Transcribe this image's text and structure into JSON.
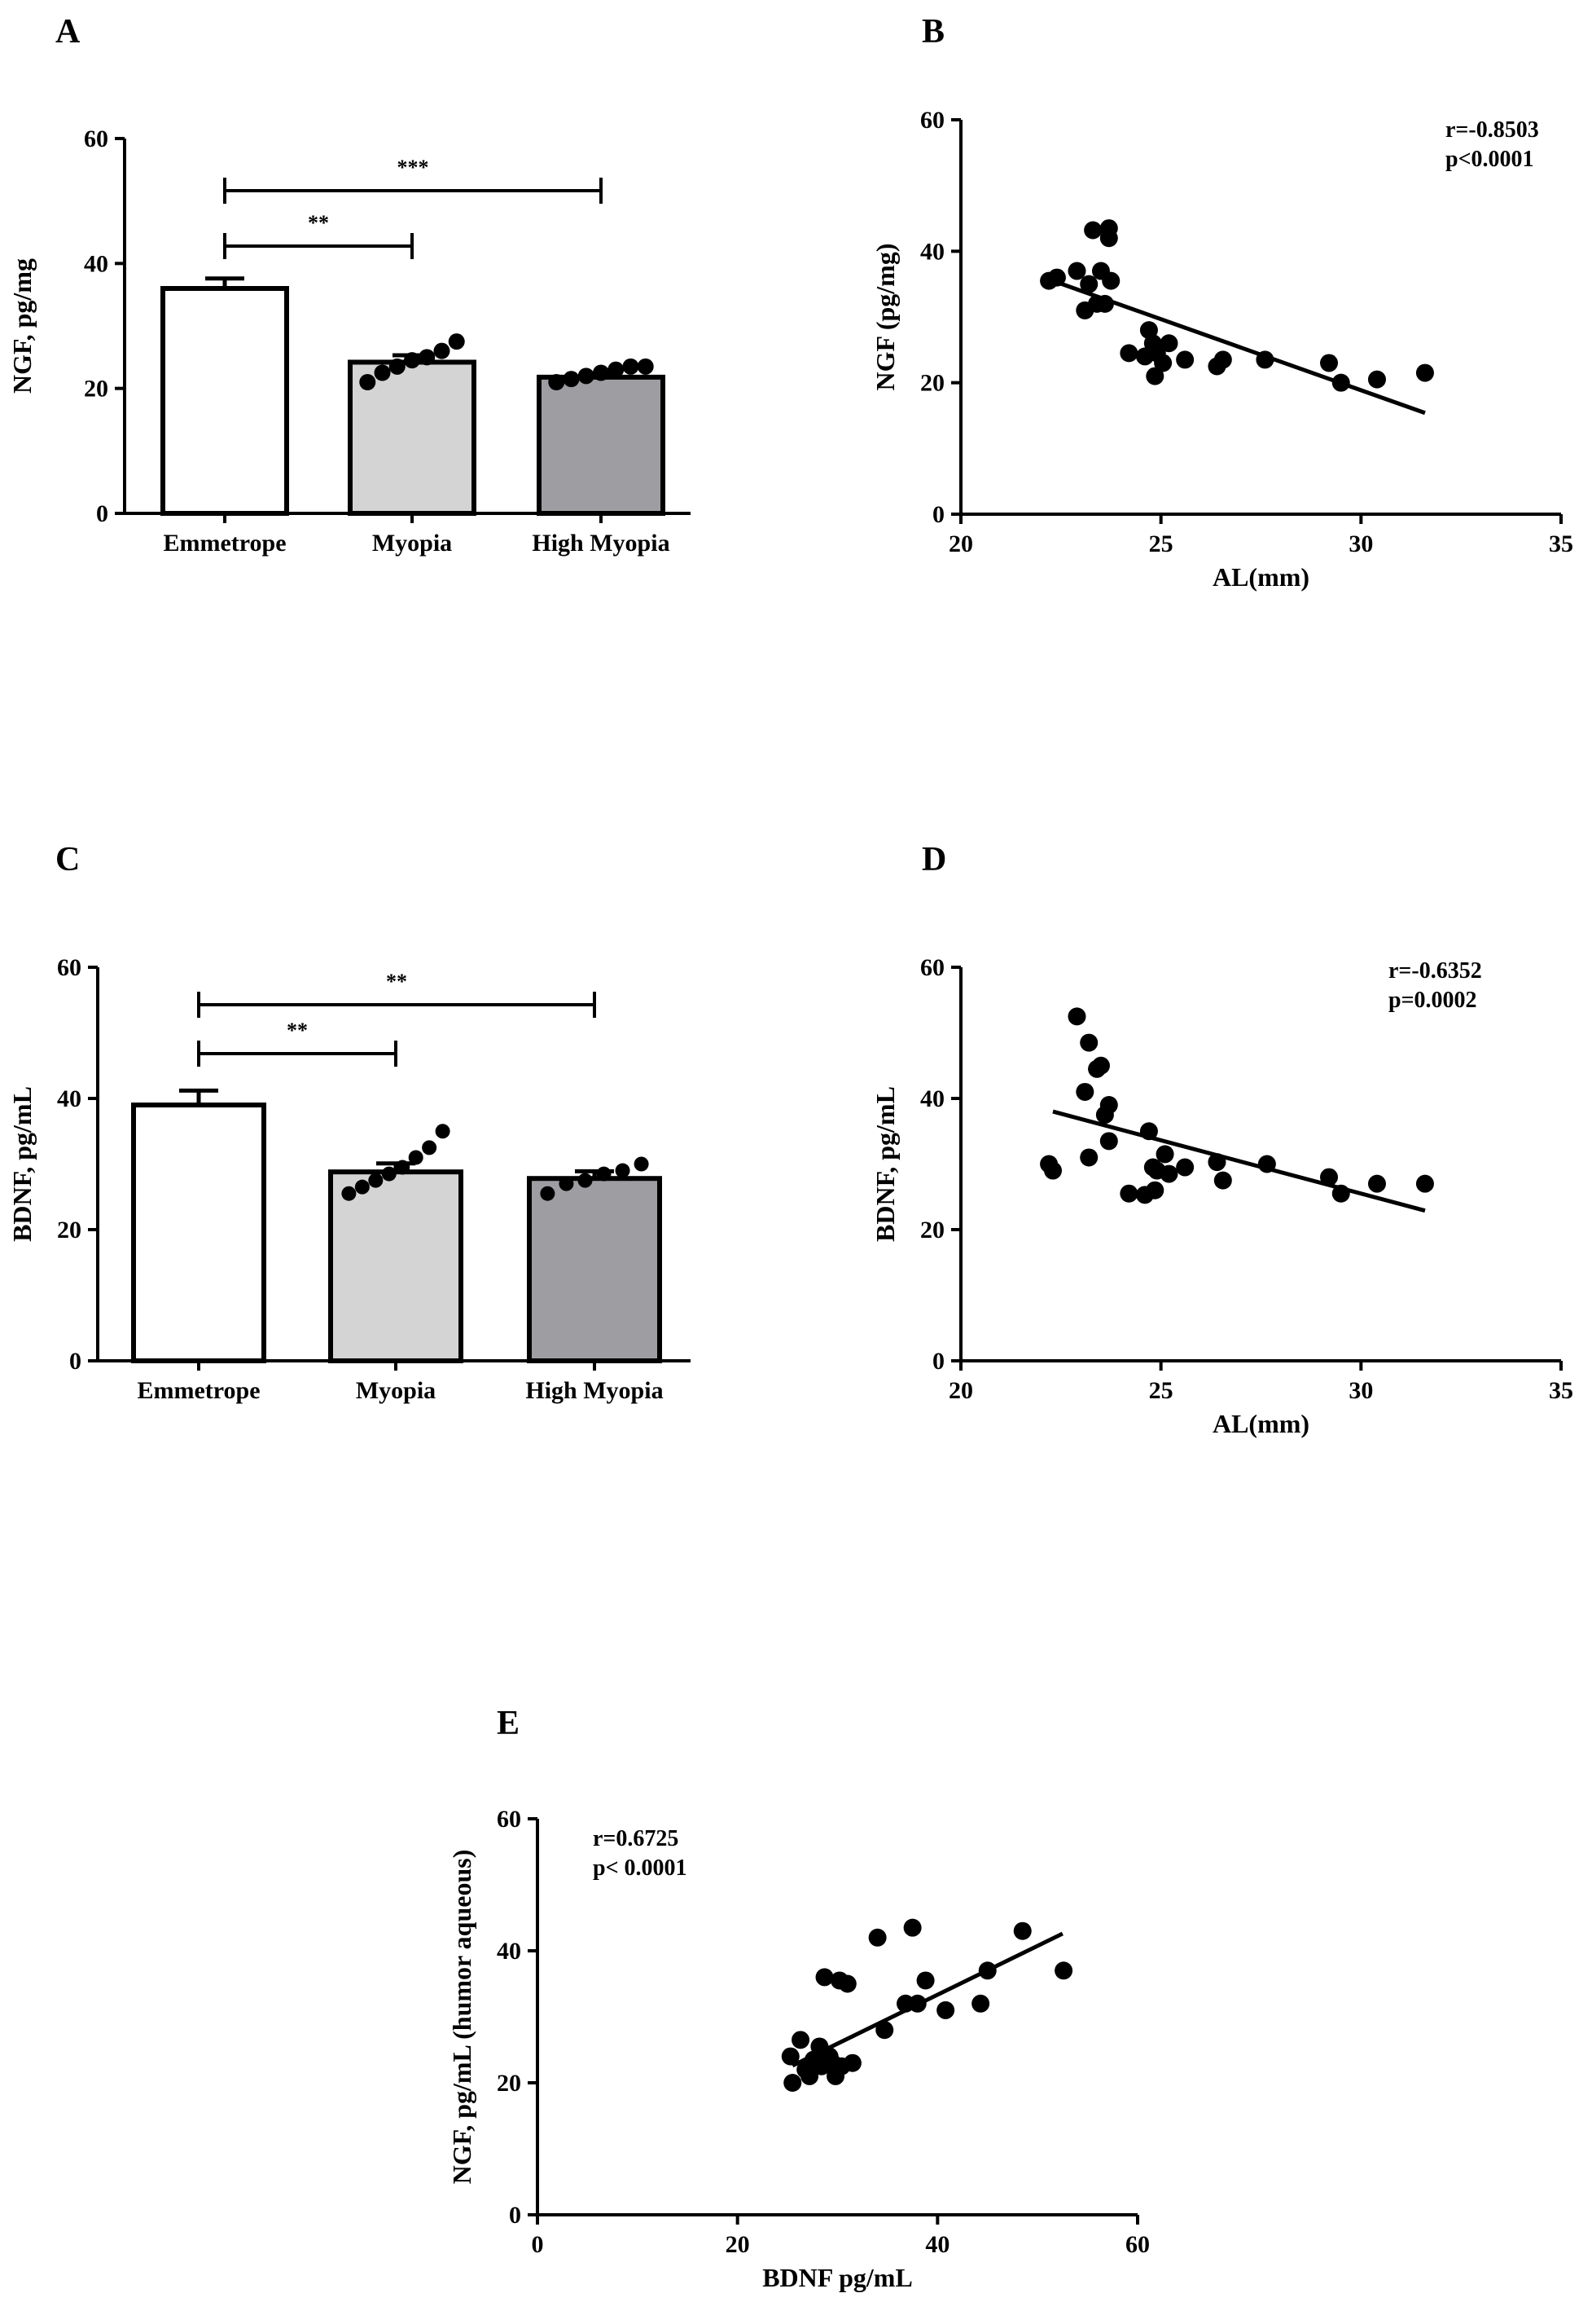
{
  "chart_data": [
    {
      "panel": "A",
      "type": "bar",
      "categories": [
        "Emmetrope",
        "Myopia",
        "High Myopia"
      ],
      "values": [
        36,
        24.2,
        21.8
      ],
      "errors": [
        1.6,
        1.1,
        0.6
      ],
      "points": [
        [],
        [
          21,
          22.5,
          23.5,
          24.5,
          25,
          26,
          27.5
        ],
        [
          21,
          21.5,
          22,
          22.5,
          23,
          23.5,
          23.5
        ]
      ],
      "fills": [
        "#ffffff",
        "#d4d4d4",
        "#9e9ea2"
      ],
      "ylabel": "NGF, pg/mg",
      "ylim": [
        0,
        60
      ],
      "yticks": [
        "0",
        "20",
        "40",
        "60"
      ],
      "significance": [
        {
          "from": 0,
          "to": 1,
          "label": "**"
        },
        {
          "from": 0,
          "to": 2,
          "label": "***"
        }
      ]
    },
    {
      "panel": "B",
      "type": "scatter",
      "xlabel": "AL(mm)",
      "ylabel": "NGF (pg/mg)",
      "xlim": [
        20,
        35
      ],
      "ylim": [
        0,
        60
      ],
      "xticks": [
        "20",
        "25",
        "30",
        "35"
      ],
      "yticks": [
        "0",
        "20",
        "40",
        "60"
      ],
      "points": [
        [
          22.2,
          35.5
        ],
        [
          22.4,
          36
        ],
        [
          22.9,
          37
        ],
        [
          23.1,
          31
        ],
        [
          23.2,
          35
        ],
        [
          23.3,
          43.2
        ],
        [
          23.4,
          32
        ],
        [
          23.5,
          37
        ],
        [
          23.6,
          32
        ],
        [
          23.7,
          43.5
        ],
        [
          23.7,
          42
        ],
        [
          23.75,
          35.5
        ],
        [
          24.2,
          24.5
        ],
        [
          24.6,
          24
        ],
        [
          24.7,
          28
        ],
        [
          24.8,
          26
        ],
        [
          24.85,
          21
        ],
        [
          24.9,
          24.5
        ],
        [
          25.05,
          23
        ],
        [
          25.2,
          26
        ],
        [
          25.6,
          23.5
        ],
        [
          26.4,
          22.5
        ],
        [
          26.55,
          23.5
        ],
        [
          27.6,
          23.5
        ],
        [
          29.2,
          23
        ],
        [
          29.5,
          20
        ],
        [
          30.4,
          20.5
        ],
        [
          31.6,
          21.5
        ]
      ],
      "fit": {
        "x": [
          22.3,
          31.6
        ],
        "y": [
          35.5,
          15.4
        ]
      },
      "annotation": [
        "r=-0.8503",
        "p<0.0001"
      ]
    },
    {
      "panel": "C",
      "type": "bar",
      "categories": [
        "Emmetrope",
        "Myopia",
        "High Myopia"
      ],
      "values": [
        39,
        28.8,
        27.8
      ],
      "errors": [
        2.2,
        1.3,
        1.1
      ],
      "points": [
        [],
        [
          25.5,
          26.5,
          27.5,
          28.5,
          29.5,
          31,
          32.5,
          35
        ],
        [
          25.5,
          27,
          27.5,
          28.5,
          29,
          30
        ]
      ],
      "fills": [
        "#ffffff",
        "#d4d4d4",
        "#9e9ea2"
      ],
      "ylabel": "BDNF, pg/mL",
      "ylim": [
        0,
        60
      ],
      "yticks": [
        "0",
        "20",
        "40",
        "60"
      ],
      "significance": [
        {
          "from": 0,
          "to": 1,
          "label": "**"
        },
        {
          "from": 0,
          "to": 2,
          "label": "**"
        }
      ]
    },
    {
      "panel": "D",
      "type": "scatter",
      "xlabel": "AL(mm)",
      "ylabel": "BDNF, pg/mL",
      "xlim": [
        20,
        35
      ],
      "ylim": [
        0,
        60
      ],
      "xticks": [
        "20",
        "25",
        "30",
        "35"
      ],
      "yticks": [
        "0",
        "20",
        "40",
        "60"
      ],
      "points": [
        [
          22.2,
          30
        ],
        [
          22.3,
          29
        ],
        [
          22.9,
          52.5
        ],
        [
          23.1,
          41
        ],
        [
          23.2,
          48.5
        ],
        [
          23.2,
          31
        ],
        [
          23.4,
          44.5
        ],
        [
          23.5,
          45
        ],
        [
          23.6,
          37.5
        ],
        [
          23.7,
          39
        ],
        [
          23.7,
          33.5
        ],
        [
          24.2,
          25.5
        ],
        [
          24.6,
          25.3
        ],
        [
          24.7,
          35
        ],
        [
          24.8,
          29.5
        ],
        [
          24.85,
          26
        ],
        [
          24.9,
          29
        ],
        [
          25.1,
          31.5
        ],
        [
          25.2,
          28.5
        ],
        [
          25.6,
          29.5
        ],
        [
          26.4,
          30.3
        ],
        [
          26.55,
          27.5
        ],
        [
          27.65,
          30
        ],
        [
          29.2,
          28
        ],
        [
          29.5,
          25.5
        ],
        [
          30.4,
          27
        ],
        [
          31.6,
          27
        ]
      ],
      "fit": {
        "x": [
          22.3,
          31.6
        ],
        "y": [
          38,
          22.9
        ]
      },
      "annotation": [
        "r=-0.6352",
        "p=0.0002"
      ]
    },
    {
      "panel": "E",
      "type": "scatter",
      "xlabel": "BDNF pg/mL",
      "ylabel": "NGF, pg/mL (humor aqueous)",
      "xlim": [
        0,
        60
      ],
      "ylim": [
        0,
        60
      ],
      "xticks": [
        "0",
        "20",
        "40",
        "60"
      ],
      "yticks": [
        "0",
        "20",
        "40",
        "60"
      ],
      "points": [
        [
          25.3,
          24
        ],
        [
          25.5,
          20
        ],
        [
          26.3,
          26.5
        ],
        [
          26.8,
          22
        ],
        [
          27.2,
          21
        ],
        [
          27.6,
          23.5
        ],
        [
          28.2,
          25.5
        ],
        [
          28.4,
          22.5
        ],
        [
          28.7,
          36
        ],
        [
          29.2,
          24
        ],
        [
          29.5,
          23
        ],
        [
          29.8,
          21
        ],
        [
          30.2,
          35.5
        ],
        [
          30.4,
          22.5
        ],
        [
          31,
          35
        ],
        [
          31.5,
          23
        ],
        [
          34,
          42
        ],
        [
          34.7,
          28
        ],
        [
          36.8,
          32
        ],
        [
          37.5,
          43.5
        ],
        [
          38,
          32
        ],
        [
          38.8,
          35.5
        ],
        [
          40.8,
          31
        ],
        [
          44.3,
          32
        ],
        [
          45,
          37
        ],
        [
          48.5,
          43
        ],
        [
          52.6,
          37
        ]
      ],
      "fit": {
        "x": [
          25.5,
          52.5
        ],
        "y": [
          22.6,
          42.6
        ]
      },
      "annotation": [
        "r=0.6725",
        "p< 0.0001"
      ]
    }
  ]
}
